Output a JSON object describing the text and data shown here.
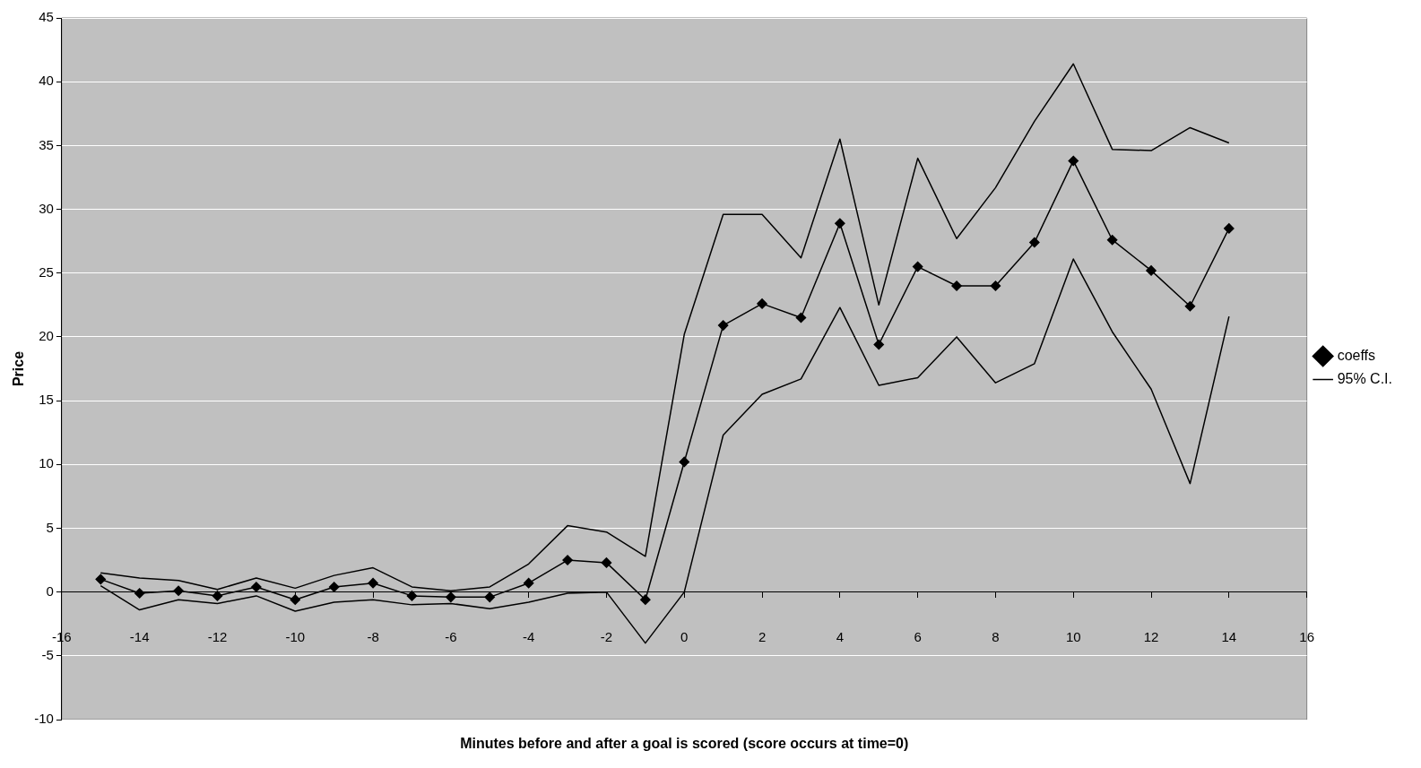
{
  "chart_data": {
    "type": "line",
    "xlabel": "Minutes before and after a goal is scored (score occurs at time=0)",
    "ylabel": "Price",
    "x": [
      -15,
      -14,
      -13,
      -12,
      -11,
      -10,
      -9,
      -8,
      -7,
      -6,
      -5,
      -4,
      -3,
      -2,
      -1,
      0,
      1,
      2,
      3,
      4,
      5,
      6,
      7,
      8,
      9,
      10,
      11,
      12,
      13,
      14
    ],
    "series": [
      {
        "name": "coeffs",
        "color": "#000000",
        "marker": "diamond",
        "values": [
          1.0,
          -0.1,
          0.1,
          -0.3,
          0.4,
          -0.6,
          0.4,
          0.7,
          -0.3,
          -0.4,
          -0.4,
          0.7,
          2.5,
          2.3,
          -0.6,
          10.2,
          20.9,
          22.6,
          21.5,
          28.9,
          19.4,
          25.5,
          24.0,
          24.0,
          27.4,
          33.8,
          27.6,
          25.2,
          22.4,
          28.5
        ]
      },
      {
        "name": "95% C.I.",
        "color": "#000000",
        "marker": "none",
        "values": [
          1.5,
          1.1,
          0.9,
          0.2,
          1.1,
          0.3,
          1.3,
          1.9,
          0.4,
          0.1,
          0.4,
          2.2,
          5.2,
          4.7,
          2.8,
          20.2,
          29.6,
          29.6,
          26.2,
          35.5,
          22.5,
          34.0,
          27.7,
          31.7,
          36.9,
          41.4,
          34.7,
          34.6,
          36.4,
          35.2
        ]
      },
      {
        "color": "#000000",
        "marker": "none",
        "values": [
          0.5,
          -1.4,
          -0.6,
          -0.9,
          -0.3,
          -1.5,
          -0.8,
          -0.6,
          -1.0,
          -0.9,
          -1.3,
          -0.8,
          -0.1,
          0.0,
          -4.0,
          0.0,
          12.3,
          15.5,
          16.7,
          22.3,
          16.2,
          16.8,
          20.0,
          16.4,
          17.9,
          26.1,
          20.4,
          15.9,
          8.5,
          21.6
        ]
      }
    ],
    "xlim": [
      -16,
      16
    ],
    "xticks": [
      -16,
      -14,
      -12,
      -10,
      -8,
      -6,
      -4,
      -2,
      0,
      2,
      4,
      6,
      8,
      10,
      12,
      14,
      16
    ],
    "ylim": [
      -10,
      45
    ],
    "yticks": [
      -10,
      -5,
      0,
      5,
      10,
      15,
      20,
      25,
      30,
      35,
      40,
      45
    ],
    "grid": "y",
    "legend": "right"
  }
}
